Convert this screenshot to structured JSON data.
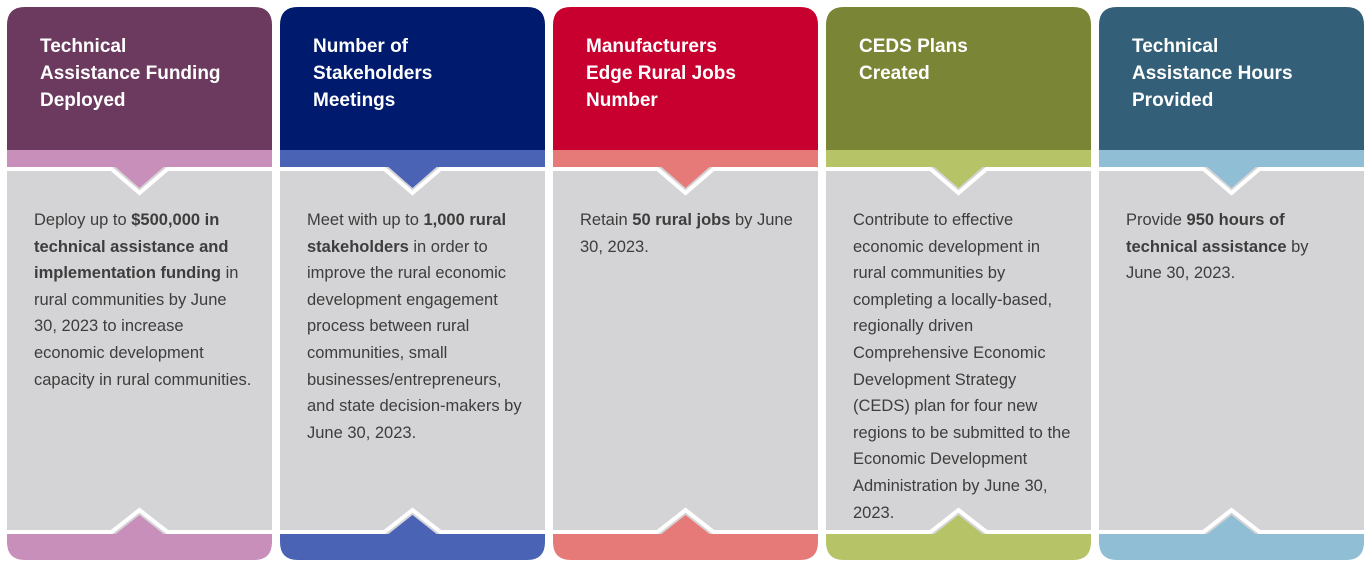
{
  "cards": [
    {
      "title": [
        "Technical",
        "Assistance Funding",
        "Deployed"
      ],
      "body": [
        {
          "text": "Deploy up to ",
          "bold": false
        },
        {
          "text": "$500,000 in technical assistance and implementation funding",
          "bold": true
        },
        {
          "text": " in rural communities by June 30, 2023 to increase economic development capacity in rural communities.",
          "bold": false
        }
      ]
    },
    {
      "title": [
        "Number of",
        "Stakeholders",
        "Meetings"
      ],
      "body": [
        {
          "text": "Meet with up to ",
          "bold": false
        },
        {
          "text": "1,000 rural stakeholders",
          "bold": true
        },
        {
          "text": " in order to improve the rural economic development engagement process between rural communities, small businesses/entrepreneurs, and state decision-makers by June 30, 2023.",
          "bold": false
        }
      ]
    },
    {
      "title": [
        "Manufacturers",
        "Edge Rural Jobs",
        "Number"
      ],
      "body": [
        {
          "text": "Retain ",
          "bold": false
        },
        {
          "text": "50 rural jobs",
          "bold": true
        },
        {
          "text": " by June 30, 2023.",
          "bold": false
        }
      ]
    },
    {
      "title": [
        "CEDS Plans",
        "Created"
      ],
      "body": [
        {
          "text": "Contribute to effective economic development in rural communities by completing a locally-based, regionally driven Comprehensive Economic Development Strategy (CEDS) plan for four new regions to be submitted to the Economic Development Administration by June 30, 2023.",
          "bold": false
        }
      ]
    },
    {
      "title": [
        "Technical",
        "Assistance Hours",
        "Provided"
      ],
      "body": [
        {
          "text": "Provide ",
          "bold": false
        },
        {
          "text": "950 hours of technical assistance",
          "bold": true
        },
        {
          "text": " by June 30, 2023.",
          "bold": false
        }
      ]
    }
  ]
}
